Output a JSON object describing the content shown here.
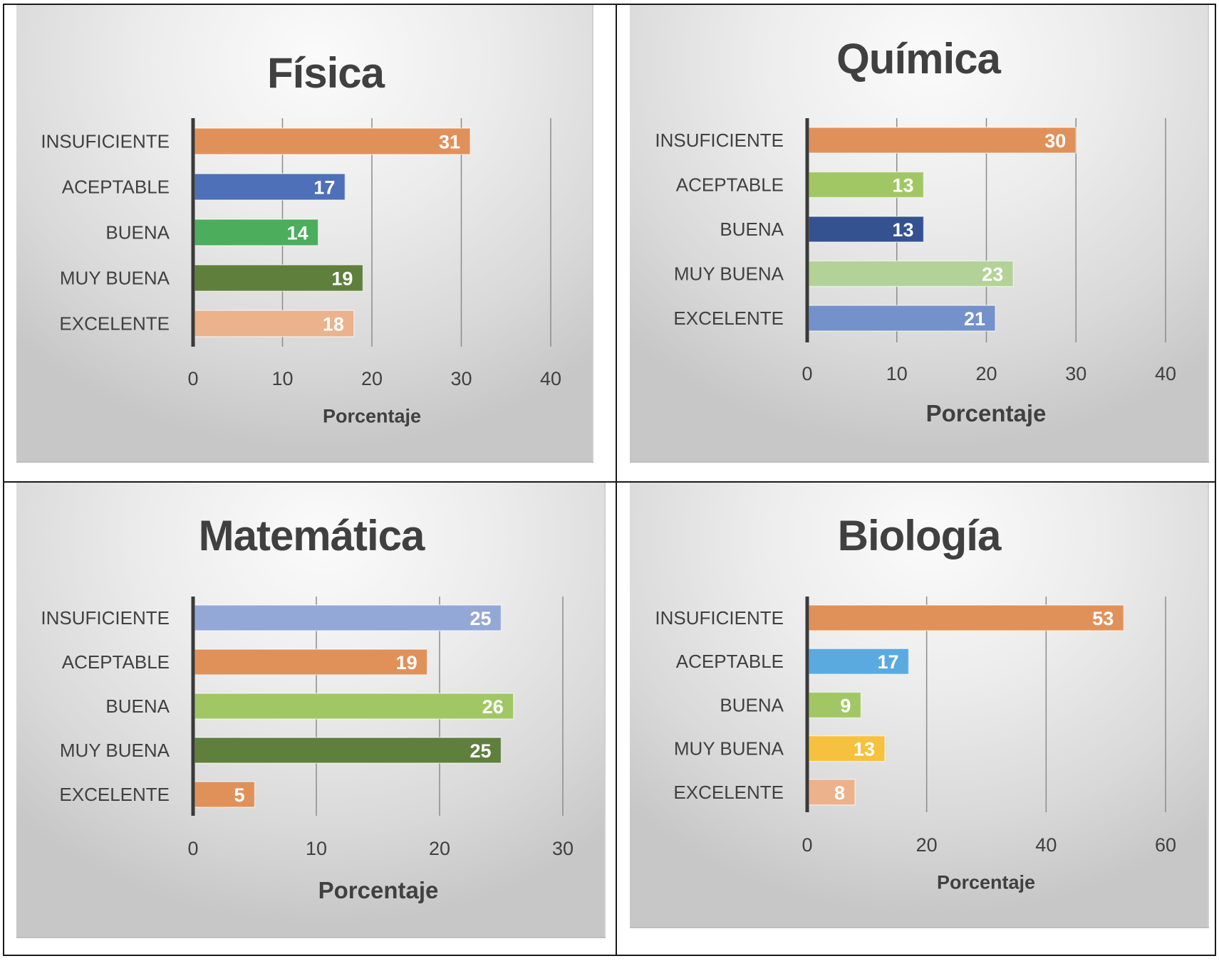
{
  "chart_data": [
    {
      "type": "bar",
      "orientation": "horizontal",
      "title": "Física",
      "xlabel": "Porcentaje",
      "ylabel": "",
      "categories": [
        "INSUFICIENTE",
        "ACEPTABLE",
        "BUENA",
        "MUY BUENA",
        "EXCELENTE"
      ],
      "values": [
        31,
        17,
        14,
        19,
        18
      ],
      "colors": [
        "#E0915A",
        "#4E70B8",
        "#4CAD5C",
        "#5F7F3C",
        "#EBB28C"
      ],
      "xlim": [
        0,
        40
      ],
      "xticks": [
        0,
        10,
        20,
        30,
        40
      ],
      "grid": true,
      "data_labels": true
    },
    {
      "type": "bar",
      "orientation": "horizontal",
      "title": "Química",
      "xlabel": "Porcentaje",
      "ylabel": "",
      "categories": [
        "INSUFICIENTE",
        "ACEPTABLE",
        "BUENA",
        "MUY BUENA",
        "EXCELENTE"
      ],
      "values": [
        30,
        13,
        13,
        23,
        21
      ],
      "colors": [
        "#E0915A",
        "#A1C765",
        "#34528F",
        "#B3D297",
        "#7491CC"
      ],
      "xlim": [
        0,
        40
      ],
      "xticks": [
        0,
        10,
        20,
        30,
        40
      ],
      "grid": true,
      "data_labels": true
    },
    {
      "type": "bar",
      "orientation": "horizontal",
      "title": "Matemática",
      "xlabel": "Porcentaje",
      "ylabel": "",
      "categories": [
        "INSUFICIENTE",
        "ACEPTABLE",
        "BUENA",
        "MUY BUENA",
        "EXCELENTE"
      ],
      "values": [
        25,
        19,
        26,
        25,
        5
      ],
      "colors": [
        "#94A8D8",
        "#E0915A",
        "#A1C765",
        "#5F7F3C",
        "#E0915A"
      ],
      "xlim": [
        0,
        30
      ],
      "xticks": [
        0,
        10,
        20,
        30
      ],
      "grid": true,
      "data_labels": true
    },
    {
      "type": "bar",
      "orientation": "horizontal",
      "title": "Biología",
      "xlabel": "Porcentaje",
      "ylabel": "",
      "categories": [
        "INSUFICIENTE",
        "ACEPTABLE",
        "BUENA",
        "MUY BUENA",
        "EXCELENTE"
      ],
      "values": [
        53,
        17,
        9,
        13,
        8
      ],
      "colors": [
        "#E0915A",
        "#5AAAE0",
        "#A1C765",
        "#F6C13F",
        "#EBB28C"
      ],
      "xlim": [
        0,
        60
      ],
      "xticks": [
        0,
        20,
        40,
        60
      ],
      "grid": true,
      "data_labels": true
    }
  ]
}
